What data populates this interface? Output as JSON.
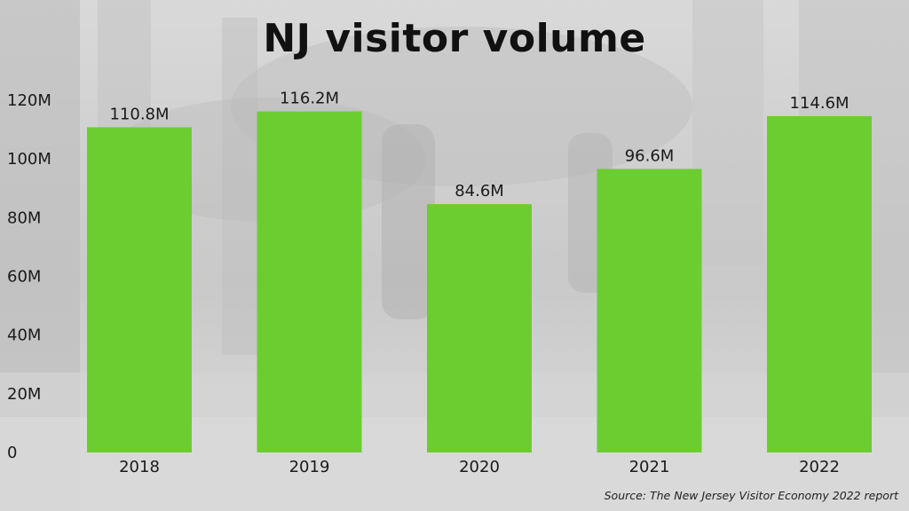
{
  "title": "NJ visitor volume",
  "source": "Source: The New Jersey Visitor Economy 2022 report",
  "colors": {
    "bar": "#6ccd31"
  },
  "chart_data": {
    "type": "bar",
    "title": "NJ visitor volume",
    "categories": [
      "2018",
      "2019",
      "2020",
      "2021",
      "2022"
    ],
    "values": [
      110.8,
      116.2,
      84.6,
      96.6,
      114.6
    ],
    "value_labels": [
      "110.8M",
      "116.2M",
      "84.6M",
      "96.6M",
      "114.6M"
    ],
    "yticks": [
      0,
      20,
      40,
      60,
      80,
      100,
      120
    ],
    "ytick_labels": [
      "0",
      "20M",
      "40M",
      "60M",
      "80M",
      "100M",
      "120M"
    ],
    "ylim": [
      0,
      120
    ],
    "grid": false,
    "legend": "none"
  }
}
